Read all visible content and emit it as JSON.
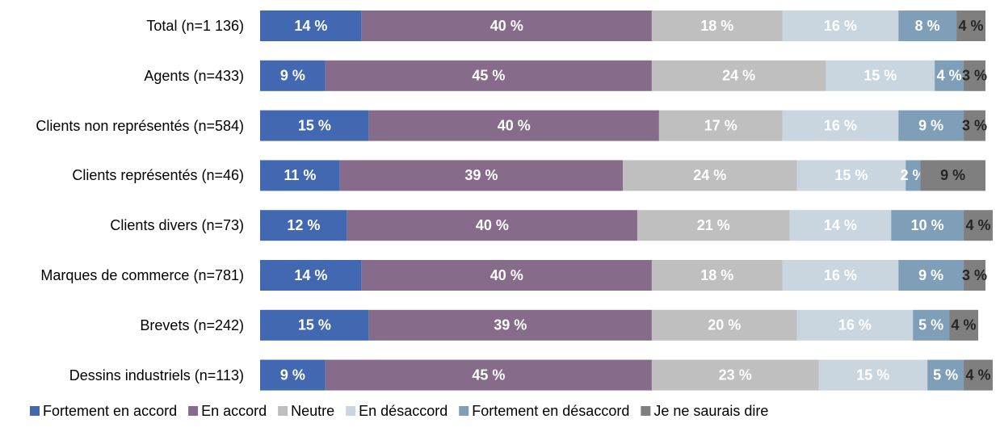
{
  "chart_data": {
    "type": "stacked-bar-horizontal",
    "categories": [
      "Total (n=1 136)",
      "Agents (n=433)",
      "Clients non représentés (n=584)",
      "Clients représentés (n=46)",
      "Clients divers (n=73)",
      "Marques de commerce (n=781)",
      "Brevets (n=242)",
      "Dessins industriels (n=113)"
    ],
    "xlim": [
      0,
      100
    ],
    "legend": "bottom",
    "series": [
      {
        "name": "Fortement en accord",
        "color": "#4168b0",
        "values": [
          14,
          9,
          15,
          11,
          12,
          14,
          15,
          9
        ],
        "value_labels": [
          "14 %",
          "9 %",
          "15 %",
          "11 %",
          "12 %",
          "14 %",
          "15 %",
          "9 %"
        ]
      },
      {
        "name": "En accord",
        "color": "#866b8a",
        "values": [
          40,
          45,
          40,
          39,
          40,
          40,
          39,
          45
        ],
        "value_labels": [
          "40 %",
          "45 %",
          "40 %",
          "39 %",
          "40 %",
          "40 %",
          "39 %",
          "45 %"
        ]
      },
      {
        "name": "Neutre",
        "color": "#bfbfbf",
        "values": [
          18,
          24,
          17,
          24,
          21,
          18,
          20,
          23
        ],
        "value_labels": [
          "18 %",
          "24 %",
          "17 %",
          "24 %",
          "21 %",
          "18 %",
          "20 %",
          "23 %"
        ]
      },
      {
        "name": "En désaccord",
        "color": "#c9d6e0",
        "values": [
          16,
          15,
          16,
          15,
          14,
          16,
          16,
          15
        ],
        "value_labels": [
          "16 %",
          "15 %",
          "16 %",
          "15 %",
          "14 %",
          "16 %",
          "16 %",
          "15 %"
        ]
      },
      {
        "name": "Fortement en désaccord",
        "color": "#7f9fb8",
        "values": [
          8,
          4,
          9,
          2,
          10,
          9,
          5,
          5
        ],
        "value_labels": [
          "8 %",
          "4 %",
          "9 %",
          "2 %",
          "10 %",
          "9 %",
          "5 %",
          "5 %"
        ]
      },
      {
        "name": "Je ne saurais dire",
        "color": "#7f7f7f",
        "values": [
          4,
          3,
          3,
          9,
          4,
          3,
          4,
          4
        ],
        "value_labels": [
          "4 %",
          "3 %",
          "3 %",
          "9 %",
          "4 %",
          "3 %",
          "4 %",
          "4 %"
        ]
      }
    ]
  }
}
